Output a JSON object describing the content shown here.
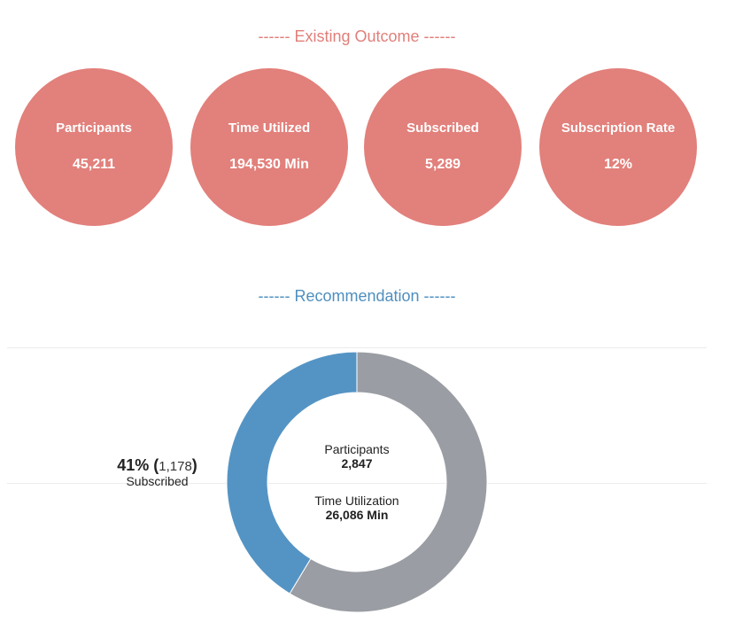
{
  "existing": {
    "title": "------ Existing Outcome ------",
    "color": "#e2807b",
    "kpis": [
      {
        "label": "Participants",
        "value": "45,211"
      },
      {
        "label": "Time Utilized",
        "value": "194,530 Min"
      },
      {
        "label": "Subscribed",
        "value": "5,289"
      },
      {
        "label": "Subscription Rate",
        "value": "12%"
      }
    ]
  },
  "recommendation": {
    "title": "------ Recommendation ------",
    "color": "#4f8fbf",
    "callout": {
      "percent": "41%",
      "open_paren": "(",
      "count": "1,178",
      "close_paren": ")",
      "label": "Subscribed"
    },
    "center": {
      "participants_label": "Participants",
      "participants_value": "2,847",
      "time_label": "Time Utilization",
      "time_value": "26,086 Min"
    }
  },
  "chart_data": {
    "type": "pie",
    "donut": true,
    "series": [
      {
        "name": "Subscribed",
        "value": 1178,
        "color": "#5494c4"
      },
      {
        "name": "",
        "value": 1669,
        "color": "#9a9da3"
      }
    ],
    "total": 2847
  }
}
